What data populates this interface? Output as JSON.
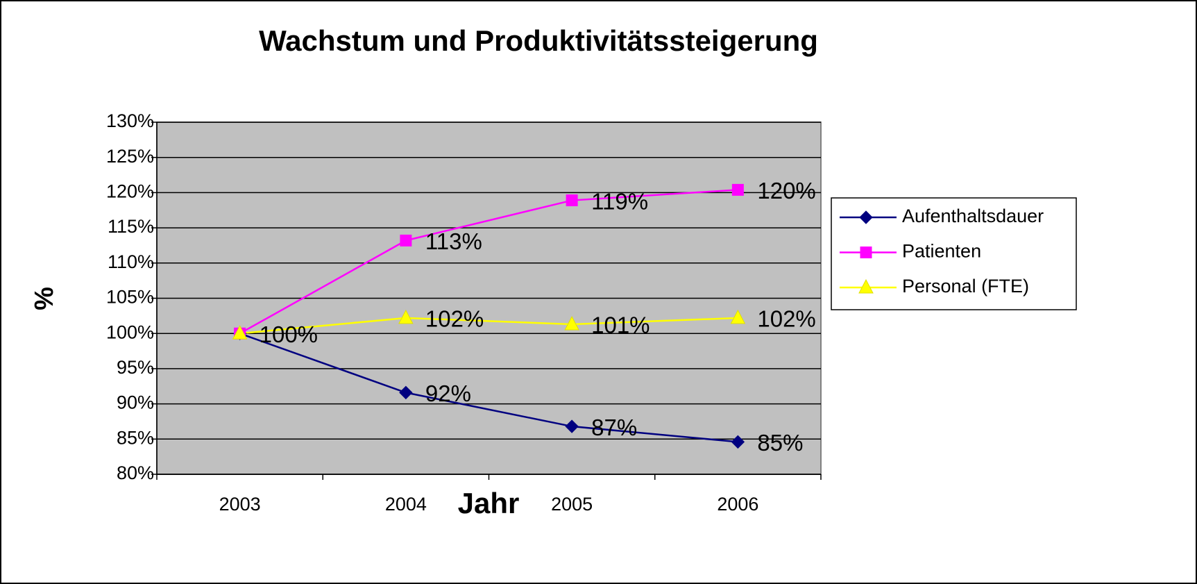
{
  "chart_data": {
    "type": "line",
    "title": "Wachstum und Produktivitätssteigerung",
    "x_label": "Jahr",
    "y_label": "%",
    "categories": [
      "2003",
      "2004",
      "2005",
      "2006"
    ],
    "series": [
      {
        "name": "Aufenthaltsdauer",
        "color": "#000080",
        "marker": "diamond",
        "values": [
          100,
          91.6,
          86.8,
          84.6
        ],
        "value_labels": [
          null,
          "92%",
          "87%",
          "85%"
        ]
      },
      {
        "name": "Patienten",
        "color": "#ff00ff",
        "marker": "square",
        "values": [
          100,
          113.2,
          118.9,
          120.4
        ],
        "value_labels": [
          null,
          "113%",
          "119%",
          "120%"
        ]
      },
      {
        "name": "Personal (FTE)",
        "color": "#ffff00",
        "marker": "triangle",
        "values": [
          100,
          102.2,
          101.3,
          102.2
        ],
        "value_labels": [
          "100%",
          "102%",
          "101%",
          "102%"
        ]
      }
    ],
    "ylim": [
      80,
      130
    ],
    "yticks": [
      {
        "value": 80,
        "label": "80%"
      },
      {
        "value": 85,
        "label": "85%"
      },
      {
        "value": 90,
        "label": "90%"
      },
      {
        "value": 95,
        "label": "95%"
      },
      {
        "value": 100,
        "label": "100%"
      },
      {
        "value": 105,
        "label": "105%"
      },
      {
        "value": 110,
        "label": "110%"
      },
      {
        "value": 115,
        "label": "115%"
      },
      {
        "value": 120,
        "label": "120%"
      },
      {
        "value": 125,
        "label": "125%"
      },
      {
        "value": 130,
        "label": "130%"
      }
    ],
    "grid": true,
    "legend": "right",
    "plot_background": "#c0c0c0"
  }
}
